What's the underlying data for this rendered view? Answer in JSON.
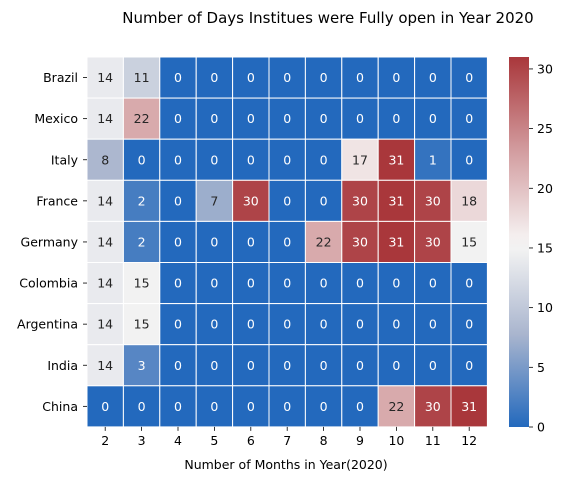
{
  "chart_data": {
    "type": "heatmap",
    "title": "Number of Days Institues were Fully open in Year 2020",
    "xlabel": "Number of Months in Year(2020)",
    "ylabel": "",
    "x": [
      "2",
      "3",
      "4",
      "5",
      "6",
      "7",
      "8",
      "9",
      "10",
      "11",
      "12"
    ],
    "y": [
      "Brazil",
      "Mexico",
      "Italy",
      "France",
      "Germany",
      "Colombia",
      "Argentina",
      "India",
      "China"
    ],
    "values": [
      [
        14,
        11,
        0,
        0,
        0,
        0,
        0,
        0,
        0,
        0,
        0
      ],
      [
        14,
        22,
        0,
        0,
        0,
        0,
        0,
        0,
        0,
        0,
        0
      ],
      [
        8,
        0,
        0,
        0,
        0,
        0,
        0,
        17,
        31,
        1,
        0
      ],
      [
        14,
        2,
        0,
        7,
        30,
        0,
        0,
        30,
        31,
        30,
        18
      ],
      [
        14,
        2,
        0,
        0,
        0,
        0,
        22,
        30,
        31,
        30,
        15
      ],
      [
        14,
        15,
        0,
        0,
        0,
        0,
        0,
        0,
        0,
        0,
        0
      ],
      [
        14,
        15,
        0,
        0,
        0,
        0,
        0,
        0,
        0,
        0,
        0
      ],
      [
        14,
        3,
        0,
        0,
        0,
        0,
        0,
        0,
        0,
        0,
        0
      ],
      [
        0,
        0,
        0,
        0,
        0,
        0,
        0,
        0,
        22,
        30,
        31
      ]
    ],
    "colorbar": {
      "min": 0,
      "max": 31,
      "ticks": [
        0,
        5,
        10,
        15,
        20,
        25,
        30
      ]
    },
    "colormap": {
      "low": "#2166ac",
      "mid": "#f7f7f7",
      "high": "#b2182b",
      "name": "vlag"
    },
    "annotations": true
  }
}
